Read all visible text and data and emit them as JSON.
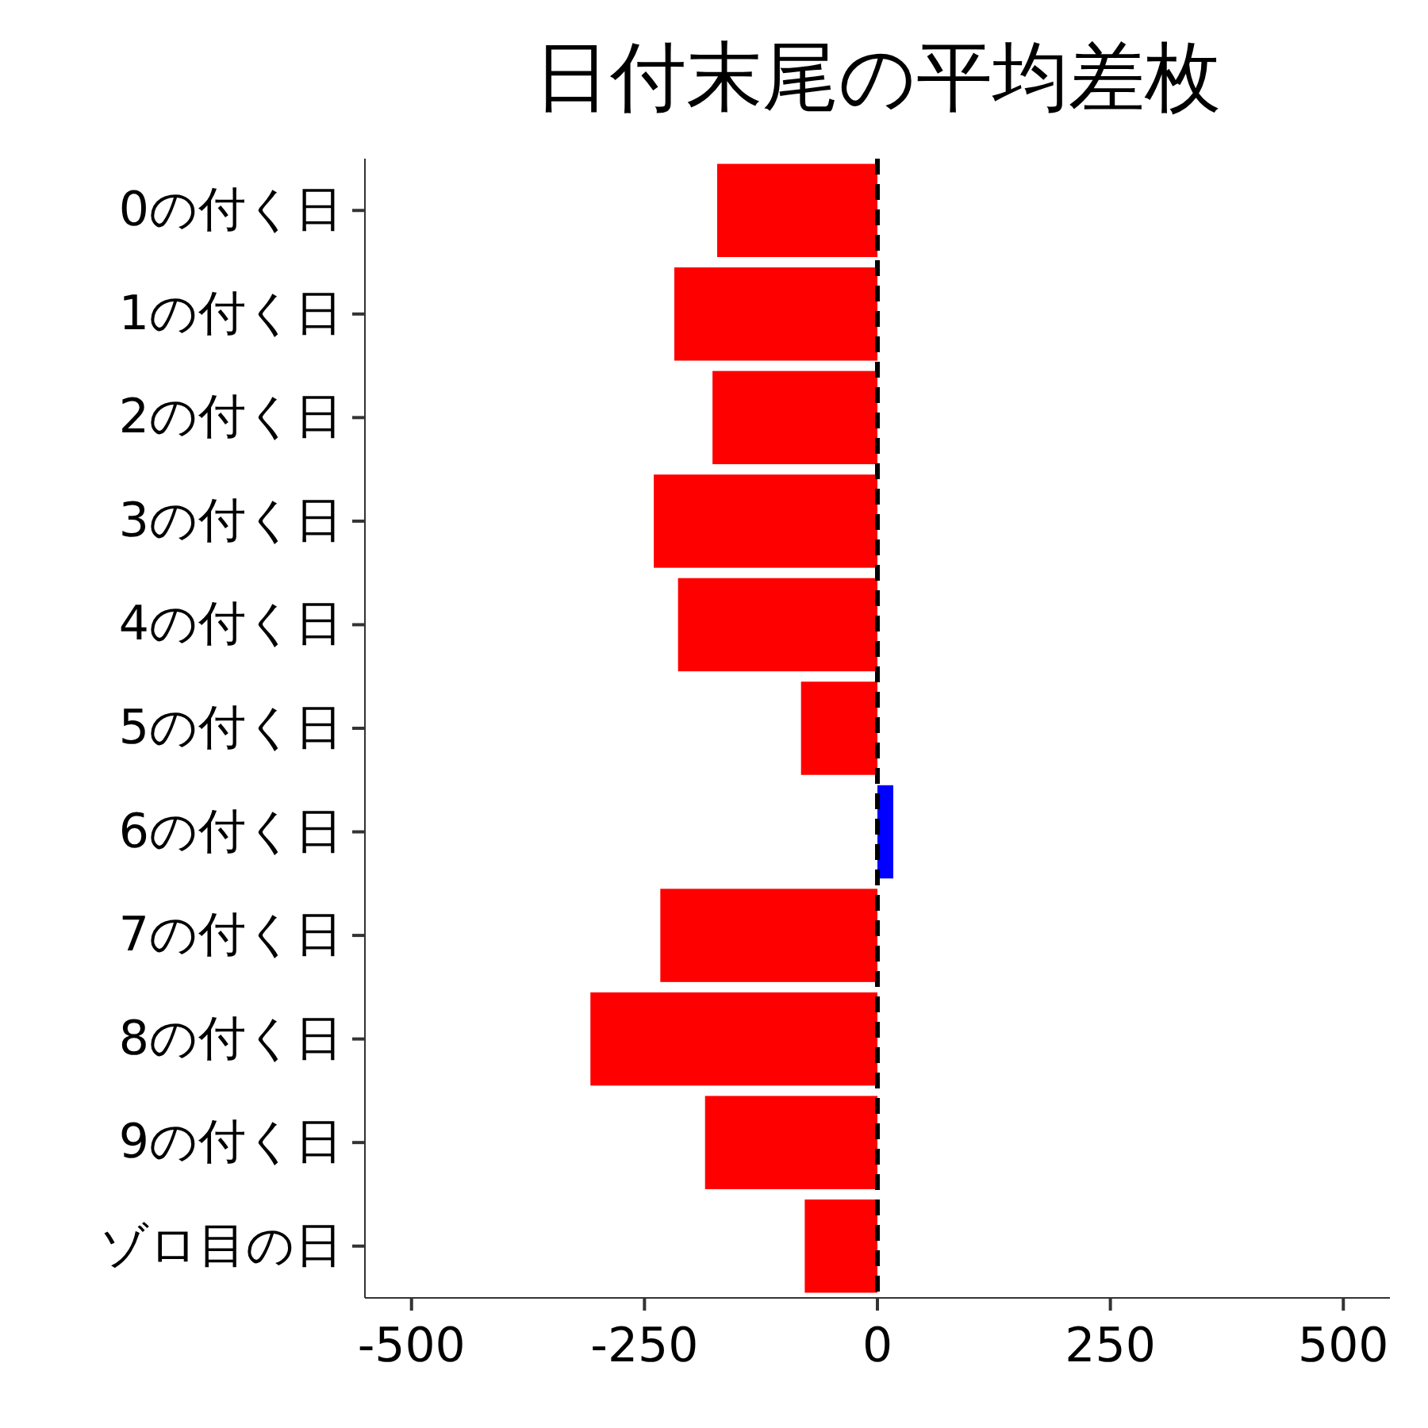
{
  "chart_data": {
    "type": "bar",
    "orientation": "horizontal",
    "title": "日付末尾の平均差枚",
    "categories": [
      "0の付く日",
      "1の付く日",
      "2の付く日",
      "3の付く日",
      "4の付く日",
      "5の付く日",
      "6の付く日",
      "7の付く日",
      "8の付く日",
      "9の付く日",
      "ゾロ目の日"
    ],
    "values": [
      -172,
      -218,
      -177,
      -240,
      -214,
      -82,
      17,
      -233,
      -308,
      -185,
      -78
    ],
    "colors": [
      "#ff0000",
      "#ff0000",
      "#ff0000",
      "#ff0000",
      "#ff0000",
      "#ff0000",
      "#0000ff",
      "#ff0000",
      "#ff0000",
      "#ff0000",
      "#ff0000"
    ],
    "xlim": [
      -550,
      550
    ],
    "xticks": [
      -500,
      -250,
      0,
      250,
      500
    ],
    "ref_lines": [
      {
        "axis": "x",
        "value": 0,
        "color": "#000000",
        "line_style": "dashed"
      }
    ],
    "grid": false
  }
}
